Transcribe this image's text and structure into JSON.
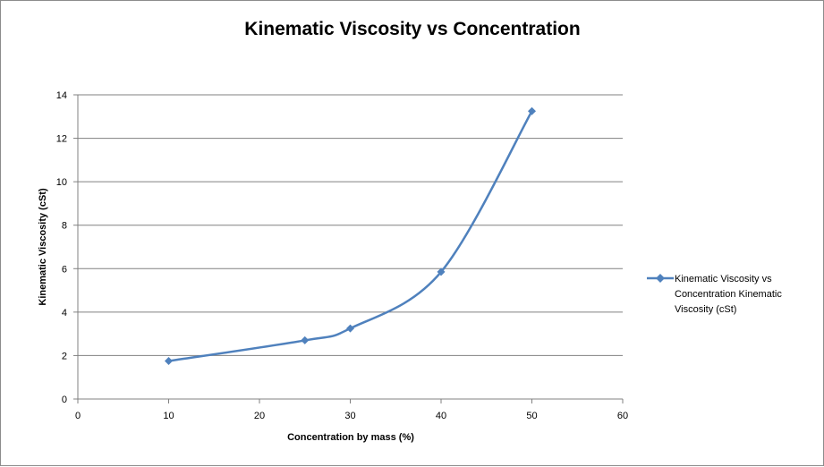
{
  "chart_data": {
    "type": "scatter",
    "title": "Kinematic Viscosity vs Concentration",
    "xlabel": "Concentration by mass (%)",
    "ylabel": "Kinematic Viscosity (cSt)",
    "xlim": [
      0,
      60
    ],
    "ylim": [
      0,
      14
    ],
    "x_ticks": [
      0,
      10,
      20,
      30,
      40,
      50,
      60
    ],
    "y_ticks": [
      0,
      2,
      4,
      6,
      8,
      10,
      12,
      14
    ],
    "grid": "horizontal",
    "smooth_line": true,
    "legend_position": "right",
    "series": [
      {
        "name": "Kinematic Viscosity vs Concentration Kinematic Viscosity (cSt)",
        "legend_lines": [
          "Kinematic Viscosity vs",
          "Concentration Kinematic",
          "Viscosity (cSt)"
        ],
        "color": "#4f81bd",
        "marker": "diamond",
        "x": [
          10,
          25,
          30,
          40,
          50
        ],
        "y": [
          1.75,
          2.7,
          3.25,
          5.85,
          13.25
        ]
      }
    ]
  }
}
